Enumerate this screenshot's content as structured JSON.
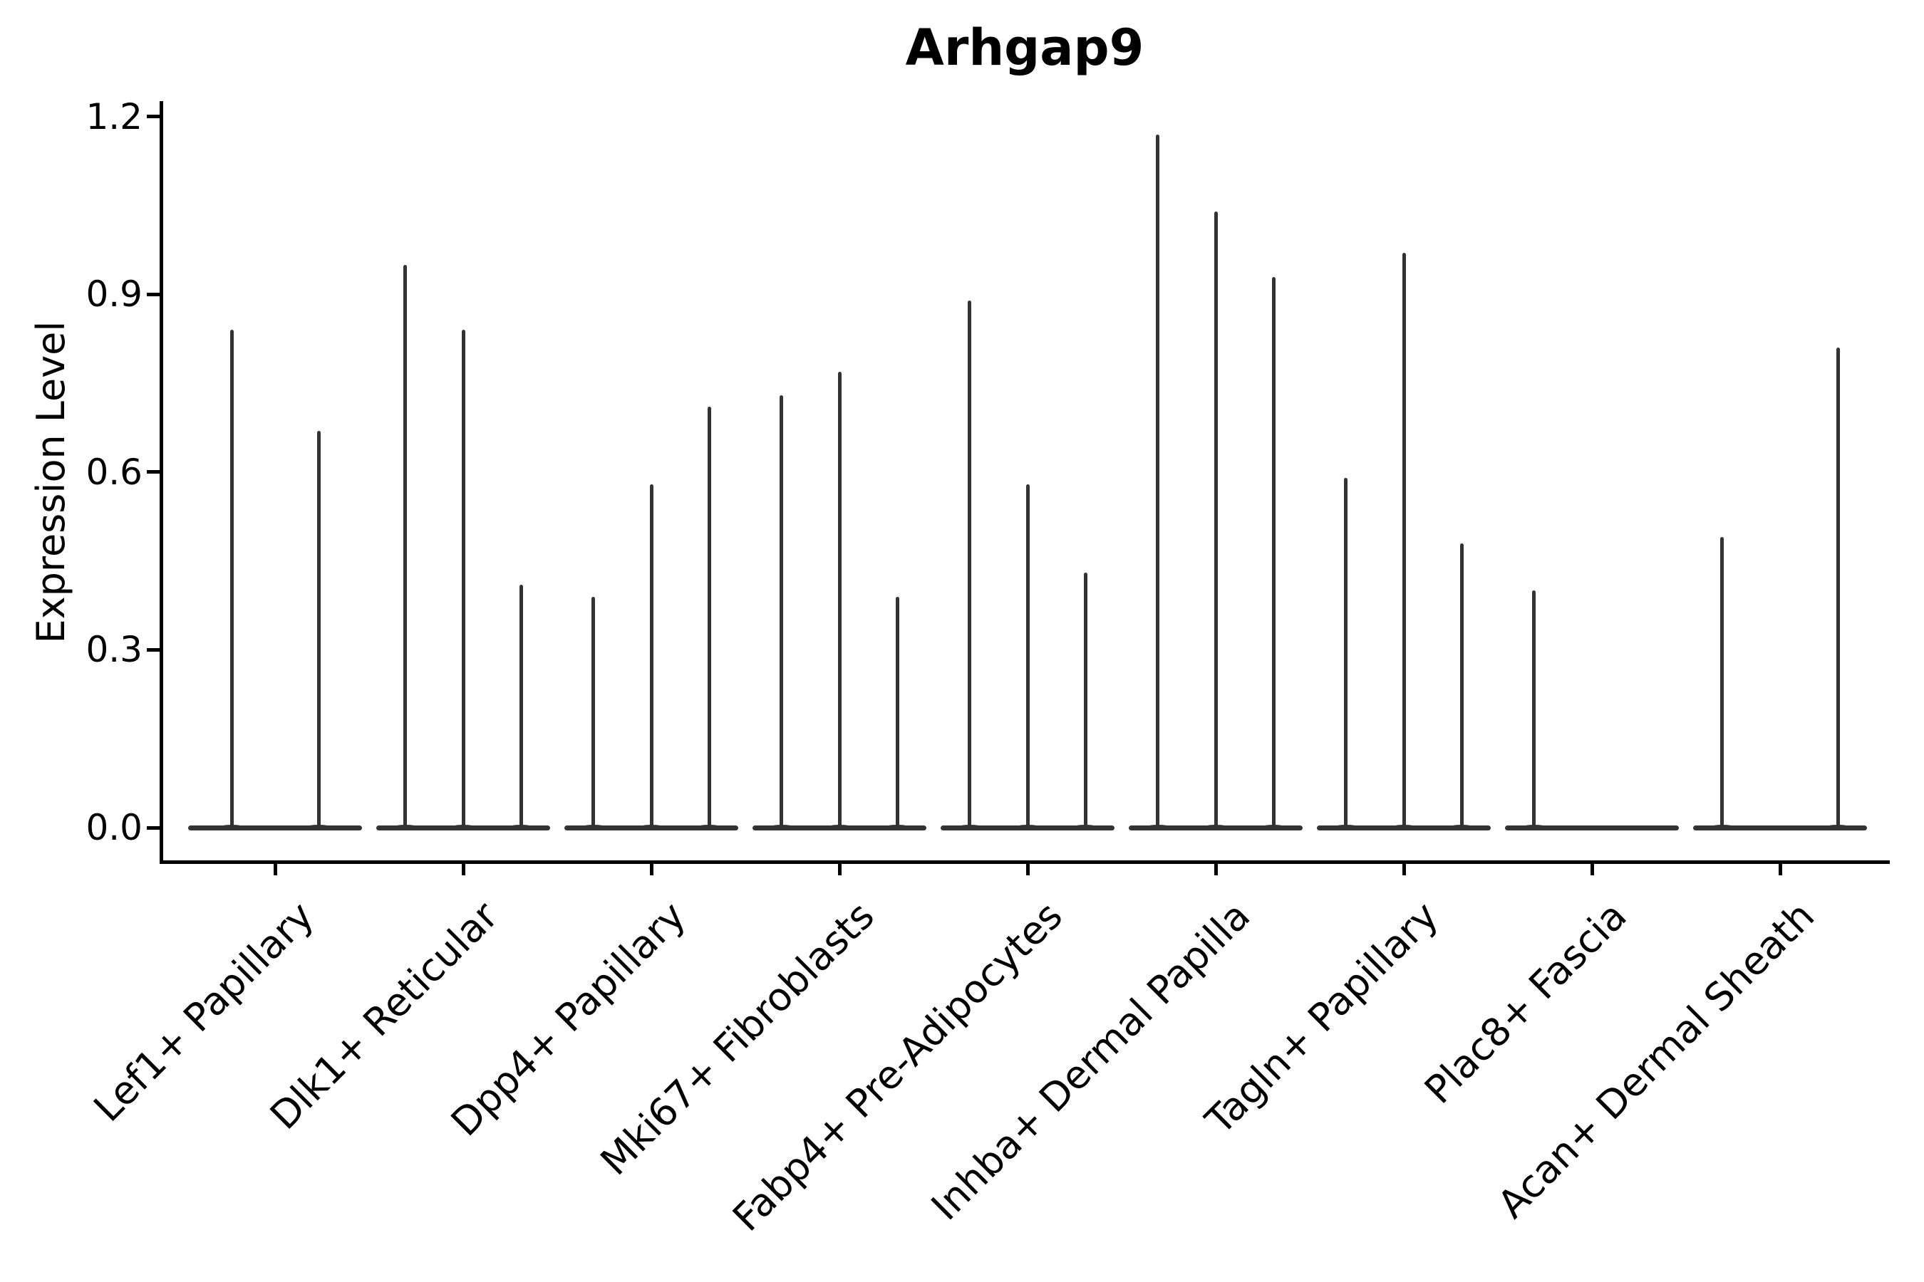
{
  "title": "Arhgap9",
  "colors": {
    "background": "#ffffff",
    "violin": "#333333",
    "axis": "#000000",
    "text": "#000000"
  },
  "chart_data": {
    "type": "violin",
    "title": "Arhgap9",
    "xlabel": "",
    "ylabel": "Expression Level",
    "ylim": [
      0,
      1.2
    ],
    "yticks": [
      0.0,
      0.3,
      0.6,
      0.9,
      1.2
    ],
    "ytick_labels": [
      "0.0",
      "0.3",
      "0.6",
      "0.9",
      "1.2"
    ],
    "grid": false,
    "legend_position": "none",
    "categories": [
      "Lef1+ Papillary",
      "Dlk1+ Reticular",
      "Dpp4+ Papillary",
      "Mki67+ Fibroblasts",
      "Fabp4+ Pre-Adipocytes",
      "Inhba+ Dermal Papilla",
      "Tagln+ Papillary",
      "Plac8+ Fascia",
      "Acan+ Dermal Sheath"
    ],
    "groups": [
      {
        "label": "Lef1+ Papillary",
        "violin_peaks": [
          0.84,
          0.67
        ]
      },
      {
        "label": "Dlk1+ Reticular",
        "violin_peaks": [
          0.95,
          0.84,
          0.41
        ]
      },
      {
        "label": "Dpp4+ Papillary",
        "violin_peaks": [
          0.39,
          0.58,
          0.71
        ]
      },
      {
        "label": "Mki67+ Fibroblasts",
        "violin_peaks": [
          0.73,
          0.77,
          0.39
        ]
      },
      {
        "label": "Fabp4+ Pre-Adipocytes",
        "violin_peaks": [
          0.89,
          0.58,
          0.43
        ]
      },
      {
        "label": "Inhba+ Dermal Papilla",
        "violin_peaks": [
          1.17,
          1.04,
          0.93
        ]
      },
      {
        "label": "Tagln+ Papillary",
        "violin_peaks": [
          0.59,
          0.97,
          0.48
        ]
      },
      {
        "label": "Plac8+ Fascia",
        "violin_peaks": [
          0.4,
          0.0,
          0.0
        ]
      },
      {
        "label": "Acan+ Dermal Sheath",
        "violin_peaks": [
          0.49,
          0.0,
          0.81
        ]
      }
    ]
  }
}
